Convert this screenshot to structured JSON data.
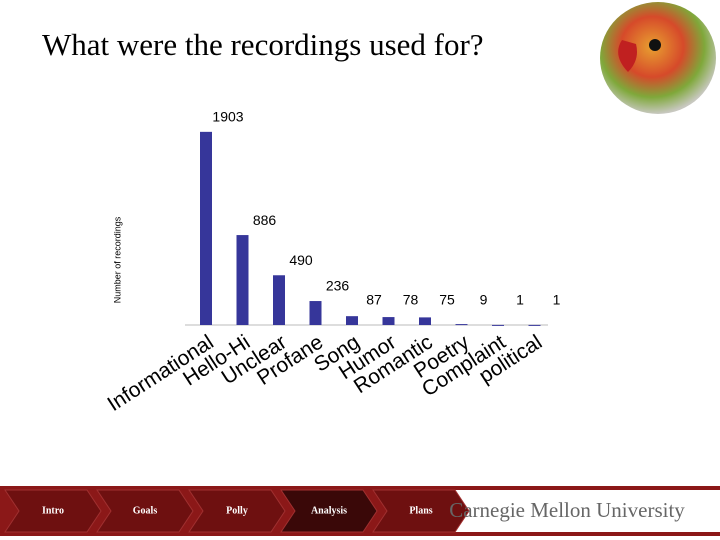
{
  "chart_data": {
    "type": "bar",
    "title": "What were the recordings used for?",
    "y_label": "Number of recordings",
    "categories": [
      "Informational",
      "Hello-Hi",
      "Unclear",
      "Profane",
      "Song",
      "Humor",
      "Romantic",
      "Poetry",
      "Complaint",
      "political"
    ],
    "values": [
      1903,
      886,
      490,
      236,
      87,
      78,
      75,
      9,
      1,
      1
    ],
    "color": "#36369a",
    "ylim": [
      0,
      2000
    ]
  },
  "nav": [
    "Intro",
    "Goals",
    "Polly",
    "Analysis",
    "Plans"
  ],
  "brand": "Carnegie Mellon University"
}
